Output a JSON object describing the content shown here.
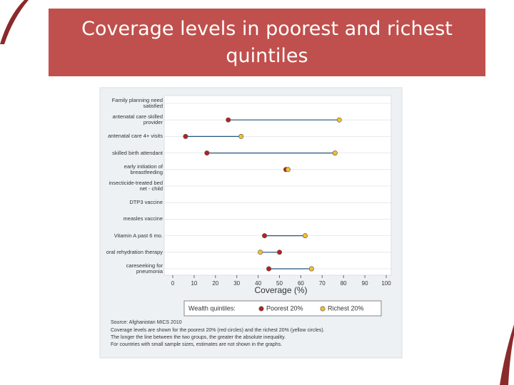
{
  "chart_data": {
    "type": "dumbbell",
    "title": "Coverage levels in poorest and richest quintiles",
    "categories": [
      "Family planning need satisfied",
      "antenatal care skilled provider",
      "antenatal care 4+ visits",
      "skilled birth attendant",
      "early initiation of breastfeeding",
      "insecticide-treated bed net - child",
      "DTP3 vaccine",
      "measles vaccine",
      "Vitamin A past 6 mo.",
      "oral rehydration therapy",
      "careseeking for pneumonia"
    ],
    "series": [
      {
        "name": "Poorest 20%",
        "color": "#b8201e",
        "values": [
          null,
          26,
          6,
          16,
          53,
          null,
          null,
          null,
          43,
          50,
          45
        ]
      },
      {
        "name": "Richest 20%",
        "color": "#f2c02c",
        "values": [
          null,
          78,
          32,
          76,
          54,
          null,
          null,
          null,
          62,
          41,
          65
        ]
      }
    ],
    "xlabel": "Coverage (%)",
    "xlim": [
      0,
      100
    ],
    "xticks": [
      0,
      10,
      20,
      30,
      40,
      50,
      60,
      70,
      80,
      90,
      100
    ],
    "grid": true,
    "legend_title": "Wealth quintiles:",
    "source": "Source: Afghanistan MICS 2010",
    "notes": [
      "Coverage levels are shown for the poorest 20% (red circles) and the richest 20% (yellow circles).",
      "The longer the line between the two groups, the greater the absolute inequality.",
      "For countries with small sample sizes, estimates are not shown in the graphs."
    ]
  }
}
